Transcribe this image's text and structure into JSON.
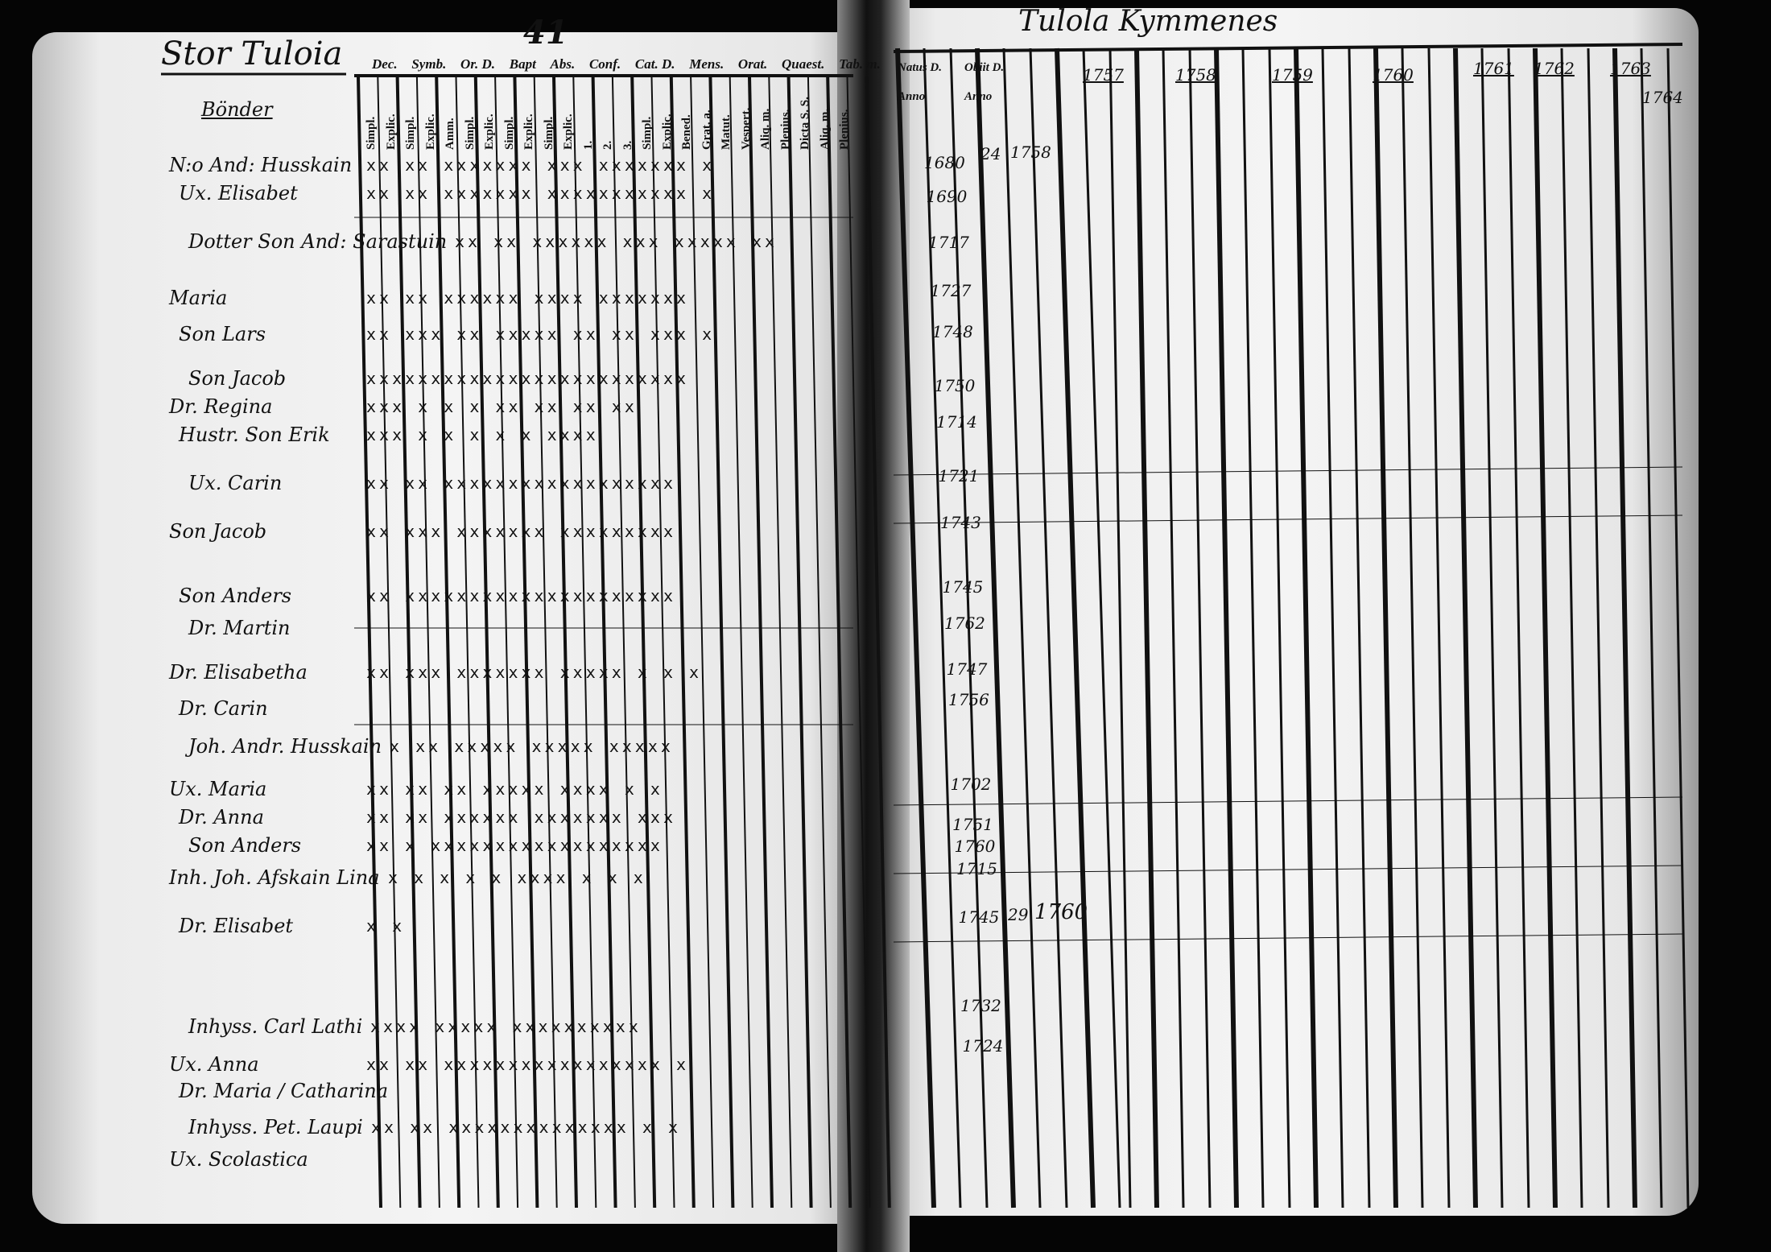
{
  "left_page": {
    "title": "Stor Tuloia",
    "page_number": "41",
    "section": "Bönder",
    "headers": [
      "Dec.",
      "Symb.",
      "Or. D.",
      "Bapt",
      "Abs.",
      "Conf.",
      "Cat. D.",
      "Mens.",
      "Orat.",
      "Quaest.",
      "Tab. m."
    ],
    "subheaders": [
      "Simpl.",
      "Explic.",
      "Simpl.",
      "Explic.",
      "Amm.",
      "Simpl.",
      "Explic.",
      "Simpl.",
      "Explic.",
      "Simpl.",
      "Explic.",
      "1.",
      "2.",
      "3.",
      "Simpl.",
      "Explic.",
      "Bened.",
      "Grat. a.",
      "Matut.",
      "Vespert.",
      "Aliq. m.",
      "Plenius.",
      "Dicta S. S.",
      "Aliq. m.",
      "Plenius."
    ],
    "rows": [
      {
        "name": "N:o And: Husskain",
        "marks": "xx xx xxxxxxx xxx xxxxxxx x"
      },
      {
        "name": "Ux. Elisabet",
        "marks": "xx xx xxxxxxx xxxxxxxxxxx x"
      },
      {
        "name": "Dotter Son And: Sarastuin",
        "marks": "xx xx xxxxxx xxx xxxxx xx"
      },
      {
        "name": "Maria",
        "marks": "xx xx xxxxxx xxxx xxxxxxx"
      },
      {
        "name": "Son Lars",
        "marks": "xx xxx xx xxxxx xx xx xxx x"
      },
      {
        "name": "Son Jacob",
        "marks": "xxxxxxxxxxxxxxxxxxxxxxxxx"
      },
      {
        "name": "Dr. Regina",
        "marks": "xxx x x x xx xx xx xx"
      },
      {
        "name": "Hustr. Son Erik",
        "marks": "xxx x x x x x xxxx"
      },
      {
        "name": "Ux. Carin",
        "marks": "xx xx xxxxxxxxxxxxxxxxxx"
      },
      {
        "name": "Son Jacob",
        "marks": "xx xxx xxxxxxx xxxxxxxxx"
      },
      {
        "name": "Son Anders",
        "marks": "xx xxxxxxxxxxxxxxxxxxxxx"
      },
      {
        "name": "Dr. Martin",
        "marks": ""
      },
      {
        "name": "Dr. Elisabetha",
        "marks": "xx xxx xxxxxxx xxxxx x x x"
      },
      {
        "name": "Dr. Carin",
        "marks": ""
      },
      {
        "name": "Joh. Andr. Husskain",
        "marks": "x xx xxxxx xxxxx xxxxx"
      },
      {
        "name": "Ux. Maria",
        "marks": "xx xx xx xxxxx xxxx x x"
      },
      {
        "name": "Dr. Anna",
        "marks": "xx xx xxxxxx xxxxxxx xxx"
      },
      {
        "name": "Son Anders",
        "marks": "xx x xxxxxxxxxxxxxxxxxx"
      },
      {
        "name": "Inh. Joh. Afskain Lina",
        "marks": "x x x x x xxxx x x x"
      },
      {
        "name": "Dr. Elisabet",
        "marks": "x x"
      },
      {
        "name": "Inhyss. Carl Lathi",
        "marks": "xxxx xxxxx xxxxxxxxxx"
      },
      {
        "name": "Ux. Anna",
        "marks": "xx xx xxxxxxxxxxxxxxxxx x"
      },
      {
        "name": "Dr. Maria / Catharina",
        "marks": ""
      },
      {
        "name": "Inhyss. Pet. Laupi",
        "marks": "xx xx xxxxxxxxxxxxxx x x"
      },
      {
        "name": "Ux. Scolastica",
        "marks": ""
      }
    ]
  },
  "right_page": {
    "title": "Tulola Kymmenes",
    "col_natus": "Natus D. Anno",
    "col_obiit": "Obiit D. Anno",
    "years": [
      "1757",
      "1758",
      "1759",
      "1760",
      "1761",
      "1762",
      "1763"
    ],
    "extra_year": "1764",
    "birth_years": [
      "1680",
      "1690",
      "1717",
      "1727",
      "1748",
      "1750",
      "1714",
      "1721",
      "1743",
      "1745",
      "1762",
      "1747",
      "1756",
      "1702",
      "1751",
      "1760",
      "1715",
      "1745",
      "1732",
      "1724"
    ],
    "death_entries": [
      {
        "day": "24",
        "year": "1758"
      },
      {
        "day": "29",
        "year": "1760"
      }
    ]
  }
}
